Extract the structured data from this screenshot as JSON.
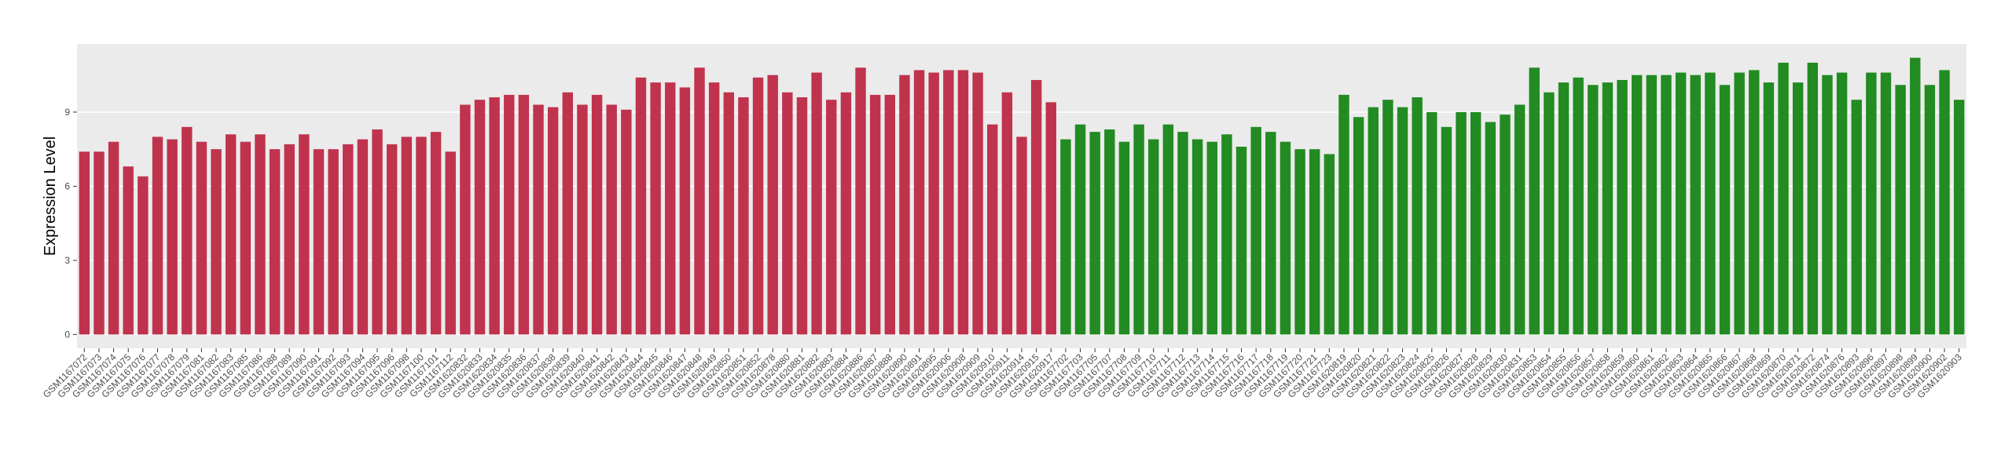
{
  "chart_data": {
    "type": "bar",
    "y_label": "Expression Level",
    "categories": [
      "GSM1167072",
      "GSM1167073",
      "GSM1167074",
      "GSM1167075",
      "GSM1167076",
      "GSM1167077",
      "GSM1167078",
      "GSM1167079",
      "GSM1167081",
      "GSM1167082",
      "GSM1167083",
      "GSM1167085",
      "GSM1167086",
      "GSM1167088",
      "GSM1167089",
      "GSM1167090",
      "GSM1167091",
      "GSM1167092",
      "GSM1167093",
      "GSM1167094",
      "GSM1167095",
      "GSM1167096",
      "GSM1167098",
      "GSM1167100",
      "GSM1167101",
      "GSM1167112",
      "GSM1620832",
      "GSM1620833",
      "GSM1620834",
      "GSM1620835",
      "GSM1620836",
      "GSM1620837",
      "GSM1620838",
      "GSM1620839",
      "GSM1620840",
      "GSM1620841",
      "GSM1620842",
      "GSM1620843",
      "GSM1620844",
      "GSM1620845",
      "GSM1620846",
      "GSM1620847",
      "GSM1620848",
      "GSM1620849",
      "GSM1620850",
      "GSM1620851",
      "GSM1620852",
      "GSM1620878",
      "GSM1620880",
      "GSM1620881",
      "GSM1620882",
      "GSM1620883",
      "GSM1620884",
      "GSM1620886",
      "GSM1620887",
      "GSM1620888",
      "GSM1620890",
      "GSM1620891",
      "GSM1620895",
      "GSM1620906",
      "GSM1620908",
      "GSM1620909",
      "GSM1620910",
      "GSM1620911",
      "GSM1620914",
      "GSM1620915",
      "GSM1620917",
      "GSM1167702",
      "GSM1167703",
      "GSM1167705",
      "GSM1167707",
      "GSM1167708",
      "GSM1167709",
      "GSM1167710",
      "GSM1167711",
      "GSM1167712",
      "GSM1167713",
      "GSM1167714",
      "GSM1167715",
      "GSM1167716",
      "GSM1167717",
      "GSM1167718",
      "GSM1167719",
      "GSM1167720",
      "GSM1167721",
      "GSM1167723",
      "GSM1620819",
      "GSM1620820",
      "GSM1620821",
      "GSM1620822",
      "GSM1620823",
      "GSM1620824",
      "GSM1620825",
      "GSM1620826",
      "GSM1620827",
      "GSM1620828",
      "GSM1620829",
      "GSM1620830",
      "GSM1620831",
      "GSM1620853",
      "GSM1620854",
      "GSM1620855",
      "GSM1620856",
      "GSM1620857",
      "GSM1620858",
      "GSM1620859",
      "GSM1620860",
      "GSM1620861",
      "GSM1620862",
      "GSM1620863",
      "GSM1620864",
      "GSM1620865",
      "GSM1620866",
      "GSM1620867",
      "GSM1620868",
      "GSM1620869",
      "GSM1620870",
      "GSM1620871",
      "GSM1620872",
      "GSM1620874",
      "GSM1620876",
      "GSM1620893",
      "GSM1620896",
      "GSM1620897",
      "GSM1620898",
      "GSM1620899",
      "GSM1620900",
      "GSM1620902",
      "GSM1620903"
    ],
    "series": [
      {
        "color": "#c0334d",
        "values": [
          7.4,
          7.4,
          7.8,
          6.8,
          6.4,
          8.0,
          7.9,
          8.4,
          7.8,
          7.5,
          8.1,
          7.8,
          8.1,
          7.5,
          7.7,
          8.1,
          7.5,
          7.5,
          7.7,
          7.9,
          8.3,
          7.7,
          8.0,
          8.0,
          8.2,
          7.4,
          9.3,
          9.5,
          9.6,
          9.7,
          9.7,
          9.3,
          9.2,
          9.8,
          9.3,
          9.7,
          9.3,
          9.1,
          10.4,
          10.2,
          10.2,
          10.0,
          10.8,
          10.2,
          9.8,
          9.6,
          10.4,
          10.5,
          9.8,
          9.6,
          10.6,
          9.5,
          9.8,
          10.8,
          9.7,
          9.7,
          10.5,
          10.7,
          10.6,
          10.7,
          10.7,
          10.6,
          8.5,
          9.8,
          8.0,
          10.3,
          9.4,
          null,
          null,
          null,
          null,
          null,
          null,
          null,
          null,
          null,
          null,
          null,
          null,
          null,
          null,
          null,
          null,
          null,
          null,
          null,
          null,
          null,
          null,
          null,
          null,
          null,
          null,
          null,
          null,
          null,
          null,
          null,
          null,
          null,
          null,
          null,
          null,
          null,
          null,
          null,
          null,
          null,
          null,
          null,
          null,
          null,
          null,
          null,
          null,
          null,
          null,
          null,
          null,
          null,
          null,
          null,
          null,
          null,
          null,
          null,
          null,
          null,
          null
        ]
      },
      {
        "color": "#228b22",
        "values": [
          null,
          null,
          null,
          null,
          null,
          null,
          null,
          null,
          null,
          null,
          null,
          null,
          null,
          null,
          null,
          null,
          null,
          null,
          null,
          null,
          null,
          null,
          null,
          null,
          null,
          null,
          null,
          null,
          null,
          null,
          null,
          null,
          null,
          null,
          null,
          null,
          null,
          null,
          null,
          null,
          null,
          null,
          null,
          null,
          null,
          null,
          null,
          null,
          null,
          null,
          null,
          null,
          null,
          null,
          null,
          null,
          null,
          null,
          null,
          null,
          null,
          null,
          null,
          null,
          null,
          null,
          null,
          7.9,
          8.5,
          8.2,
          8.3,
          7.8,
          8.5,
          7.9,
          8.5,
          8.2,
          7.9,
          7.8,
          8.1,
          7.6,
          8.4,
          8.2,
          7.8,
          7.5,
          7.5,
          7.3,
          9.7,
          8.8,
          9.2,
          9.5,
          9.2,
          9.6,
          9.0,
          8.4,
          9.0,
          9.0,
          8.6,
          8.9,
          9.3,
          10.8,
          9.8,
          10.2,
          10.4,
          10.1,
          10.2,
          10.3,
          10.5,
          10.5,
          10.5,
          10.6,
          10.5,
          10.6,
          10.1,
          10.6,
          10.7,
          10.2,
          11.0,
          10.2,
          11.0,
          10.5,
          10.6,
          9.5,
          10.6,
          10.6,
          10.1,
          11.2,
          10.1,
          10.7,
          9.5
        ]
      }
    ],
    "ylim": [
      -0.56,
      11.76
    ],
    "yticks": [
      0,
      3,
      6,
      9
    ],
    "grid": true
  }
}
